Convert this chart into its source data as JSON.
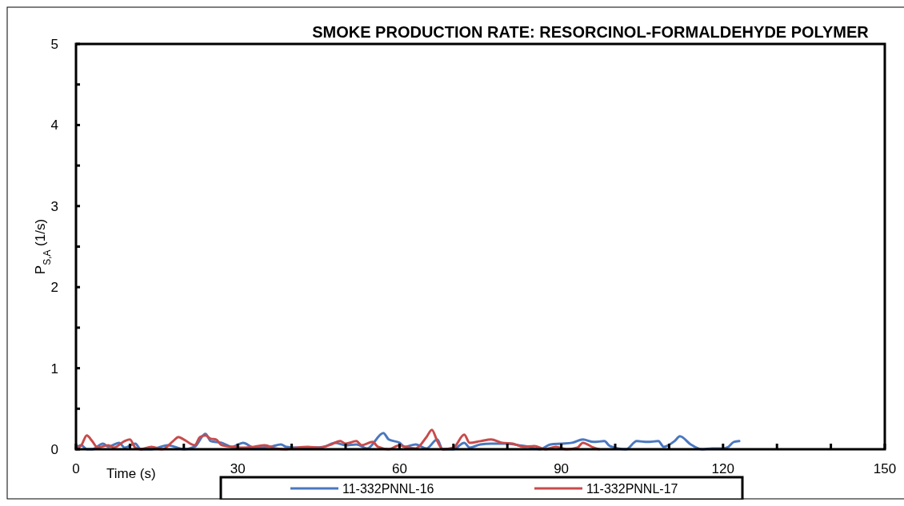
{
  "chart_data": {
    "type": "line",
    "title": "SMOKE PRODUCTION RATE:  RESORCINOL-FORMALDEHYDE POLYMER",
    "xlabel": "Time (s)",
    "ylabel": "P$_{S,A}$ (1/s)",
    "xlim": [
      0,
      150
    ],
    "ylim": [
      0,
      5
    ],
    "xticks": [
      0,
      {
        "value": 10,
        "label": null
      },
      {
        "value": 20,
        "label": null
      },
      30,
      {
        "value": 40,
        "label": null
      },
      {
        "value": 50,
        "label": null
      },
      60,
      {
        "value": 70,
        "label": null
      },
      {
        "value": 80,
        "label": null
      },
      90,
      {
        "value": 100,
        "label": null
      },
      {
        "value": 110,
        "label": null
      },
      120,
      {
        "value": 130,
        "label": null
      },
      {
        "value": 140,
        "label": null
      },
      150
    ],
    "yticks": [
      0,
      {
        "value": 0.5,
        "label": null
      },
      1,
      {
        "value": 1.5,
        "label": null
      },
      2,
      {
        "value": 2.5,
        "label": null
      },
      3,
      {
        "value": 3.5,
        "label": null
      },
      4,
      {
        "value": 4.5,
        "label": null
      },
      5
    ],
    "grid": false,
    "legend": "bottom",
    "marker": "none",
    "line_style": "solid",
    "series": [
      {
        "name": "11-332PNNL-16",
        "color": "#4a78c0",
        "x": [
          0,
          1,
          2,
          3,
          5,
          6,
          8,
          9,
          11,
          12,
          14,
          17,
          20,
          22,
          24,
          25,
          27,
          29,
          31,
          33,
          36,
          38,
          39,
          41,
          44,
          46,
          48,
          50,
          52,
          54,
          57,
          58,
          60,
          61,
          63,
          65,
          67,
          68,
          70,
          72,
          73,
          75,
          77,
          80,
          82,
          84,
          86,
          88,
          90,
          92,
          94,
          96,
          98,
          99,
          102,
          104,
          106,
          108,
          109,
          111,
          112,
          114,
          116,
          118,
          120,
          121,
          122,
          123
        ],
        "values": [
          0.02,
          0.05,
          0,
          0,
          0.07,
          0.03,
          0.08,
          0.02,
          0.07,
          0,
          0,
          0.05,
          0,
          0.03,
          0.19,
          0.1,
          0.08,
          0.03,
          0.08,
          0.02,
          0.03,
          0.06,
          0.03,
          0.02,
          0.02,
          0.03,
          0.08,
          0.05,
          0.06,
          0.01,
          0.2,
          0.12,
          0.08,
          0.03,
          0.06,
          0.01,
          0.12,
          0,
          0,
          0.08,
          0.02,
          0.06,
          0.07,
          0.07,
          0.05,
          0.03,
          0,
          0.06,
          0.07,
          0.08,
          0.12,
          0.09,
          0.1,
          0.04,
          0,
          0.1,
          0.09,
          0.1,
          0.03,
          0.1,
          0.16,
          0.06,
          0,
          0.01,
          0.01,
          0.03,
          0.09,
          0.1
        ]
      },
      {
        "name": "11-332PNNL-17",
        "color": "#c84b4b",
        "x": [
          0,
          1,
          2,
          3,
          4,
          6,
          7,
          9,
          10,
          11,
          12,
          14,
          16,
          18,
          19,
          20,
          22,
          23,
          24,
          25,
          26,
          27,
          29,
          31,
          33,
          35,
          37,
          39,
          41,
          43,
          45,
          47,
          49,
          50,
          52,
          53,
          55,
          56,
          58,
          60,
          61,
          63,
          65,
          66,
          67,
          68,
          70,
          72,
          73,
          75,
          77,
          79,
          81,
          83,
          85,
          87,
          89,
          91,
          93,
          94,
          96,
          97
        ],
        "values": [
          0,
          0.05,
          0.17,
          0.1,
          0.02,
          0.05,
          0.02,
          0.1,
          0.12,
          0.02,
          0,
          0.03,
          0,
          0.1,
          0.15,
          0.12,
          0.05,
          0.15,
          0.17,
          0.13,
          0.12,
          0.05,
          0.03,
          0.02,
          0.03,
          0.05,
          0.01,
          0,
          0.02,
          0.03,
          0.02,
          0.05,
          0.1,
          0.07,
          0.1,
          0.05,
          0.09,
          0.03,
          0,
          0.05,
          0.03,
          0.01,
          0.15,
          0.24,
          0.1,
          0,
          0.02,
          0.18,
          0.08,
          0.1,
          0.12,
          0.08,
          0.07,
          0.03,
          0.04,
          0,
          0.03,
          0,
          0.02,
          0.08,
          0.02,
          0
        ]
      }
    ]
  }
}
